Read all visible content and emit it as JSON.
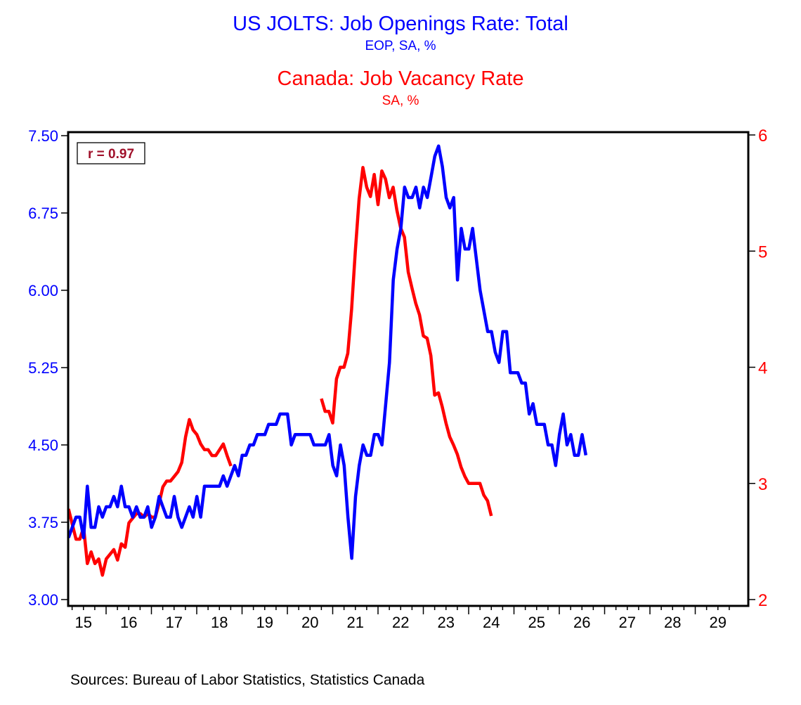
{
  "chart_data": {
    "type": "line",
    "titles": [
      {
        "text": "US JOLTS: Job Openings Rate: Total",
        "subtitle": "EOP, SA, %",
        "color": "#0000ff"
      },
      {
        "text": "Canada: Job Vacancy Rate",
        "subtitle": "SA, %",
        "color": "#ff0000"
      }
    ],
    "annotation": "r = 0.97",
    "annotation_color": "#a0102a",
    "source": "Sources:  Bureau of Labor Statistics, Statistics Canada",
    "x_axis": {
      "range": [
        2015.17,
        2029.99
      ],
      "tick_labels": [
        "15",
        "16",
        "17",
        "18",
        "19",
        "20",
        "21",
        "22",
        "23",
        "24",
        "25",
        "26",
        "27",
        "28",
        "29"
      ],
      "tick_years": [
        2015,
        2016,
        2017,
        2018,
        2019,
        2020,
        2021,
        2022,
        2023,
        2024,
        2025,
        2026,
        2027,
        2028,
        2029
      ]
    },
    "y_left": {
      "range": [
        3.0,
        7.5
      ],
      "ticks": [
        "3.00",
        "3.75",
        "4.50",
        "5.25",
        "6.00",
        "6.75",
        "7.50"
      ],
      "color": "#0000ff"
    },
    "y_right": {
      "range": [
        2,
        6
      ],
      "ticks": [
        "2",
        "3",
        "4",
        "5",
        "6"
      ],
      "color": "#ff0000"
    },
    "grid": false,
    "legend": "none",
    "series": [
      {
        "name": "US JOLTS: Job Openings Rate: Total",
        "axis": "left",
        "color": "#0000ff",
        "start": 2015.17,
        "step": 0.0833333,
        "values": [
          3.6,
          3.7,
          3.8,
          3.8,
          3.6,
          4.1,
          3.7,
          3.7,
          3.9,
          3.8,
          3.9,
          3.9,
          4.0,
          3.9,
          4.1,
          3.9,
          3.9,
          3.8,
          3.9,
          3.8,
          3.8,
          3.9,
          3.7,
          3.8,
          4.0,
          3.9,
          3.8,
          3.8,
          4.0,
          3.8,
          3.7,
          3.8,
          3.9,
          3.8,
          4.0,
          3.8,
          4.1,
          4.1,
          4.1,
          4.1,
          4.1,
          4.2,
          4.1,
          4.2,
          4.3,
          4.2,
          4.4,
          4.4,
          4.5,
          4.5,
          4.6,
          4.6,
          4.6,
          4.7,
          4.7,
          4.7,
          4.8,
          4.8,
          4.8,
          4.5,
          4.6,
          4.6,
          4.6,
          4.6,
          4.6,
          4.5,
          4.5,
          4.5,
          4.5,
          4.6,
          4.3,
          4.2,
          4.5,
          4.3,
          3.8,
          3.4,
          4.0,
          4.3,
          4.5,
          4.4,
          4.4,
          4.6,
          4.6,
          4.5,
          4.9,
          5.3,
          6.1,
          6.4,
          6.6,
          7.0,
          6.9,
          6.9,
          7.0,
          6.8,
          7.0,
          6.9,
          7.1,
          7.3,
          7.4,
          7.2,
          6.9,
          6.8,
          6.9,
          6.1,
          6.6,
          6.4,
          6.4,
          6.6,
          6.3,
          6.0,
          5.8,
          5.6,
          5.6,
          5.4,
          5.3,
          5.6,
          5.6,
          5.2,
          5.2,
          5.2,
          5.1,
          5.1,
          4.8,
          4.9,
          4.7,
          4.7,
          4.7,
          4.5,
          4.5,
          4.3,
          4.6,
          4.8,
          4.5,
          4.6,
          4.4,
          4.4,
          4.6,
          4.4
        ]
      },
      {
        "name": "Canada: Job Vacancy Rate",
        "axis": "right",
        "color": "#ff0000",
        "start": 2015.17,
        "step": 0.25,
        "segments": [
          {
            "start": 2015.17,
            "values": [
              2.78,
              2.65,
              2.52,
              2.52,
              2.62,
              2.31,
              2.41,
              2.31,
              2.35,
              2.21,
              2.35,
              2.39,
              2.43,
              2.34,
              2.48,
              2.45,
              2.66,
              2.7,
              2.74,
              2.74,
              2.71,
              2.74,
              2.71,
              2.71,
              2.83,
              2.97,
              3.02,
              3.02,
              3.06,
              3.1,
              3.18,
              3.4,
              3.55,
              3.46,
              3.42,
              3.34,
              3.29,
              3.29,
              3.24,
              3.24,
              3.29,
              3.34,
              3.24,
              3.15
            ]
          },
          {
            "start": 2020.75,
            "values": [
              3.73,
              3.62,
              3.62,
              3.52,
              3.9,
              4.0,
              4.0,
              4.12,
              4.5,
              5.0,
              5.45,
              5.72,
              5.55,
              5.47,
              5.66,
              5.4,
              5.69,
              5.62,
              5.46,
              5.55,
              5.35,
              5.2,
              5.12,
              4.82,
              4.68,
              4.55,
              4.45,
              4.27,
              4.25,
              4.1,
              3.76,
              3.78,
              3.66,
              3.52,
              3.4,
              3.33,
              3.25,
              3.14,
              3.06,
              3.0,
              3.0,
              3.0,
              3.0,
              2.9,
              2.85,
              2.72
            ]
          }
        ],
        "segment_step": 0.0833333
      }
    ]
  }
}
